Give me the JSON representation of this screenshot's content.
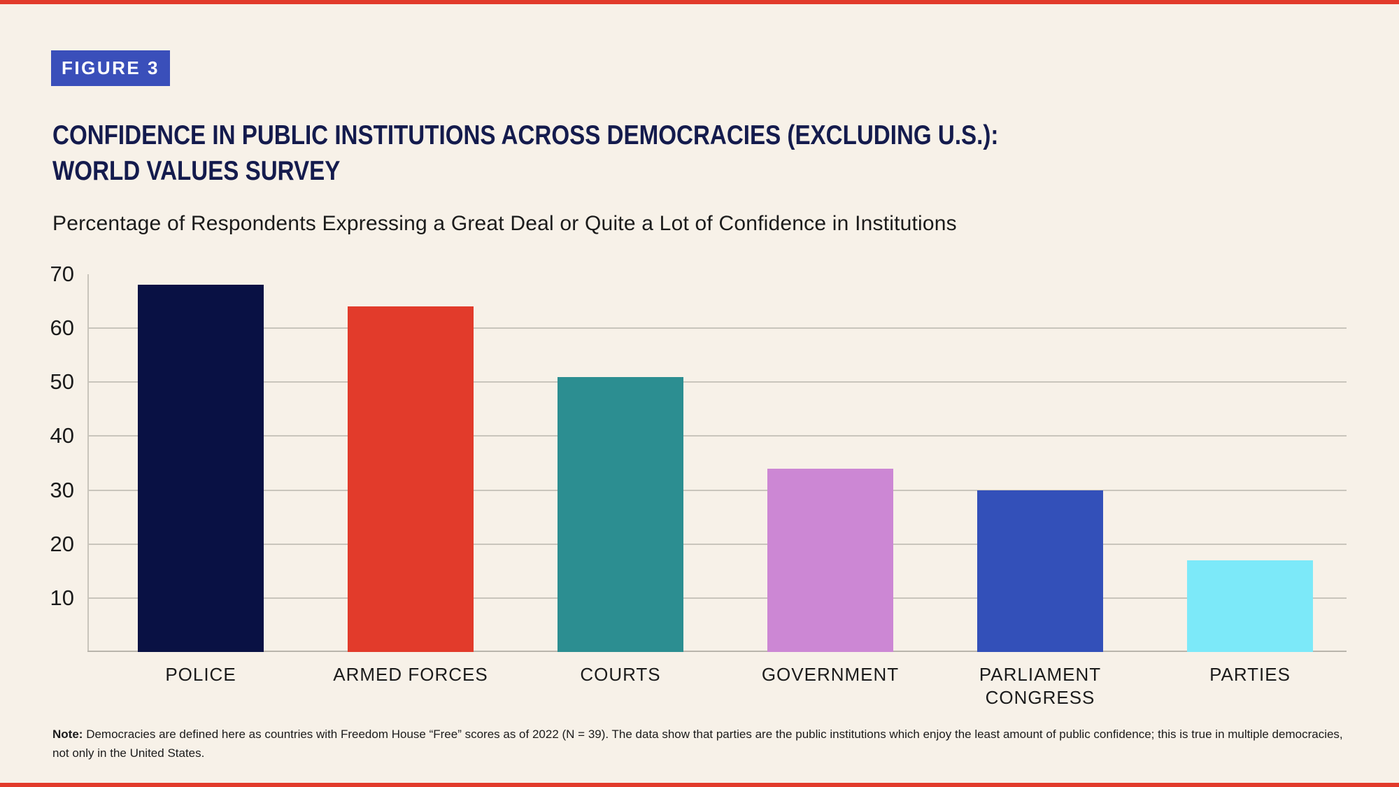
{
  "page": {
    "background": "#F7F1E8",
    "accent_rule_color": "#E23B2B"
  },
  "figure_badge": {
    "label": "FIGURE 3",
    "bg_color": "#3A4FBA",
    "text_color": "#FFFFFF"
  },
  "title": {
    "line1": "CONFIDENCE IN PUBLIC INSTITUTIONS ACROSS DEMOCRACIES (EXCLUDING U.S.):",
    "line2": "WORLD VALUES SURVEY",
    "color": "#141B4D"
  },
  "subtitle": {
    "text": "Percentage of Respondents Expressing a Great Deal or Quite a Lot of Confidence in Institutions"
  },
  "chart_data": {
    "type": "bar",
    "title": "CONFIDENCE IN PUBLIC INSTITUTIONS ACROSS DEMOCRACIES (EXCLUDING U.S.): WORLD VALUES SURVEY",
    "subtitle": "Percentage of Respondents Expressing a Great Deal or Quite a Lot of Confidence in Institutions",
    "categories": [
      "POLICE",
      "ARMED FORCES",
      "COURTS",
      "GOVERNMENT",
      "PARLIAMENT\nCONGRESS",
      "PARTIES"
    ],
    "values": [
      68,
      64,
      51,
      34,
      30,
      17
    ],
    "bar_colors": [
      "#091144",
      "#E23B2B",
      "#2C8E91",
      "#CC87D4",
      "#3350B9",
      "#7CE9F9"
    ],
    "xlabel": "",
    "ylabel": "",
    "y_ticks": [
      70,
      60,
      50,
      40,
      30,
      20,
      10
    ],
    "ylim": [
      0,
      70
    ],
    "grid": true,
    "grid_color": "#C9C5BC",
    "axis_color": "#B9B5AC",
    "legend": false
  },
  "note": {
    "label": "Note:",
    "text": "Democracies are defined here as countries with Freedom House “Free” scores as of 2022 (N = 39). The data show that parties are the public institutions which enjoy the least amount of public confidence; this is true in multiple democracies, not only in the United States."
  }
}
